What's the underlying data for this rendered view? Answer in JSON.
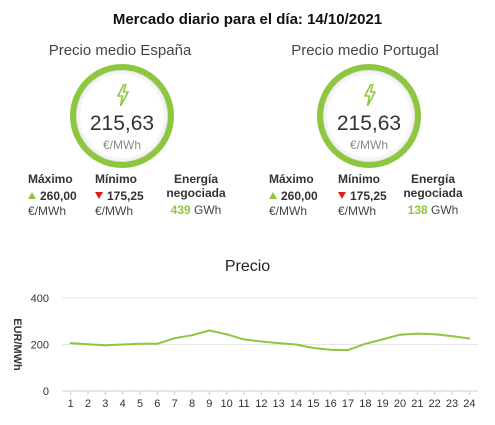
{
  "header": {
    "title": "Mercado diario para el día: 14/10/2021"
  },
  "regions": [
    {
      "id": "es",
      "title": "Precio medio España",
      "avg_value": "215,63",
      "avg_unit": "€/MWh",
      "max_label": "Máximo",
      "max_value": "260,00",
      "max_unit": "€/MWh",
      "min_label": "Mínimo",
      "min_value": "175,25",
      "min_unit": "€/MWh",
      "energy_label_1": "Energía",
      "energy_label_2": "negociada",
      "energy_value": "439",
      "energy_unit": "GWh"
    },
    {
      "id": "pt",
      "title": "Precio medio Portugal",
      "avg_value": "215,63",
      "avg_unit": "€/MWh",
      "max_label": "Máximo",
      "max_value": "260,00",
      "max_unit": "€/MWh",
      "min_label": "Mínimo",
      "min_value": "175,25",
      "min_unit": "€/MWh",
      "energy_label_1": "Energía",
      "energy_label_2": "negociada",
      "energy_value": "138",
      "energy_unit": "GWh"
    }
  ],
  "colors": {
    "accent": "#8dc63f",
    "down": "#e01b1b",
    "line": "#8dc63f",
    "grid": "#e6e6e6"
  },
  "icons": {
    "ring_icon": "lightning-bolt-icon",
    "max_icon": "triangle-up-icon",
    "min_icon": "triangle-down-icon"
  },
  "chart_data": {
    "type": "line",
    "title": "Precio",
    "ylabel": "EUR/MWh",
    "xlabel": "",
    "ylim": [
      0,
      400
    ],
    "yticks": [
      0,
      200,
      400
    ],
    "grid": true,
    "legend": "none",
    "x": [
      1,
      2,
      3,
      4,
      5,
      6,
      7,
      8,
      9,
      10,
      11,
      12,
      13,
      14,
      15,
      16,
      17,
      18,
      19,
      20,
      21,
      22,
      23,
      24
    ],
    "series": [
      {
        "values": [
          206,
          201,
          197,
          200,
          203,
          203,
          227,
          240,
          260,
          244,
          222,
          213,
          206,
          200,
          185,
          177,
          176,
          203,
          222,
          242,
          247,
          244,
          236,
          226
        ]
      }
    ]
  }
}
